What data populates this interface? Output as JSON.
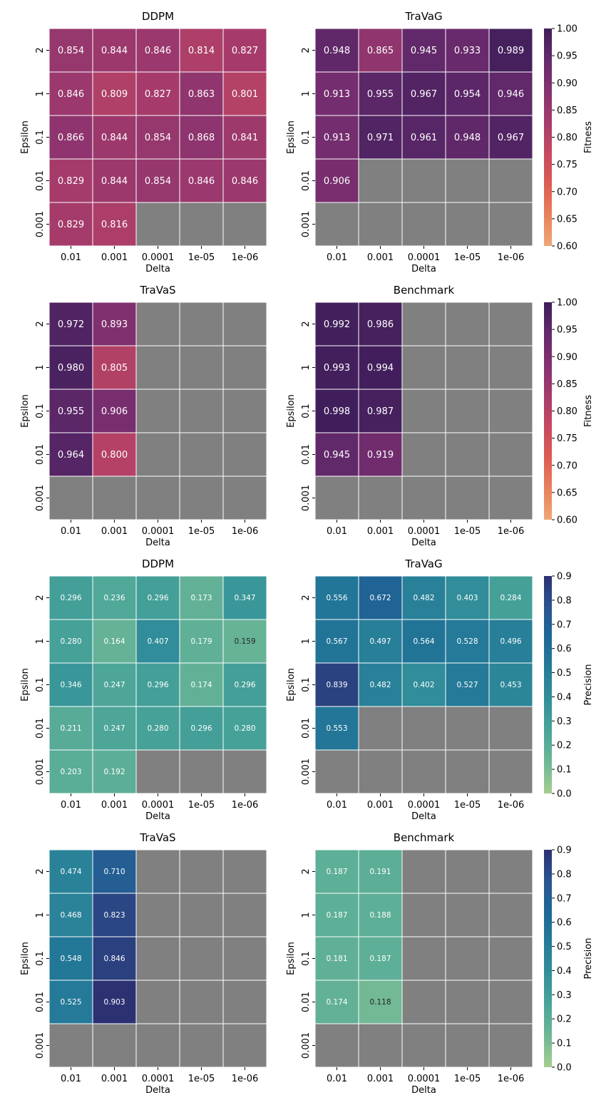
{
  "figure": {
    "colorbars": [
      {
        "label": "Fitness",
        "ticks": [
          "0.60",
          "0.65",
          "0.70",
          "0.75",
          "0.80",
          "0.85",
          "0.90",
          "0.95",
          "1.00"
        ],
        "range": [
          0.6,
          1.0
        ],
        "colormap": "flare"
      },
      {
        "label": "Fitness",
        "ticks": [
          "0.60",
          "0.65",
          "0.70",
          "0.75",
          "0.80",
          "0.85",
          "0.90",
          "0.95",
          "1.00"
        ],
        "range": [
          0.6,
          1.0
        ],
        "colormap": "flare"
      },
      {
        "label": "Precision",
        "ticks": [
          "0.0",
          "0.1",
          "0.2",
          "0.3",
          "0.4",
          "0.5",
          "0.6",
          "0.7",
          "0.8",
          "0.9"
        ],
        "range": [
          0.0,
          0.9
        ],
        "colormap": "crest"
      },
      {
        "label": "Precision",
        "ticks": [
          "0.0",
          "0.1",
          "0.2",
          "0.3",
          "0.4",
          "0.5",
          "0.6",
          "0.7",
          "0.8",
          "0.9"
        ],
        "range": [
          0.0,
          0.9
        ],
        "colormap": "crest"
      }
    ],
    "missing_color": "#808080"
  },
  "chart_data": [
    {
      "type": "heatmap",
      "title": "DDPM",
      "metric": "Fitness",
      "xlabel": "Delta",
      "ylabel": "Epsilon",
      "x_categories": [
        "0.01",
        "0.001",
        "0.0001",
        "1e-05",
        "1e-06"
      ],
      "y_categories": [
        "2",
        "1",
        "0.1",
        "0.01",
        "0.001"
      ],
      "values": [
        [
          0.854,
          0.844,
          0.846,
          0.814,
          0.827
        ],
        [
          0.846,
          0.809,
          0.827,
          0.863,
          0.801
        ],
        [
          0.866,
          0.844,
          0.854,
          0.868,
          0.841
        ],
        [
          0.829,
          0.844,
          0.854,
          0.846,
          0.846
        ],
        [
          0.829,
          0.816,
          null,
          null,
          null
        ]
      ]
    },
    {
      "type": "heatmap",
      "title": "TraVaG",
      "metric": "Fitness",
      "xlabel": "Delta",
      "ylabel": "Epsilon",
      "x_categories": [
        "0.01",
        "0.001",
        "0.0001",
        "1e-05",
        "1e-06"
      ],
      "y_categories": [
        "2",
        "1",
        "0.1",
        "0.01",
        "0.001"
      ],
      "values": [
        [
          0.948,
          0.865,
          0.945,
          0.933,
          0.989
        ],
        [
          0.913,
          0.955,
          0.967,
          0.954,
          0.946
        ],
        [
          0.913,
          0.971,
          0.961,
          0.948,
          0.967
        ],
        [
          0.906,
          null,
          null,
          null,
          null
        ],
        [
          null,
          null,
          null,
          null,
          null
        ]
      ]
    },
    {
      "type": "heatmap",
      "title": "TraVaS",
      "metric": "Fitness",
      "xlabel": "Delta",
      "ylabel": "Epsilon",
      "x_categories": [
        "0.01",
        "0.001",
        "0.0001",
        "1e-05",
        "1e-06"
      ],
      "y_categories": [
        "2",
        "1",
        "0.1",
        "0.01",
        "0.001"
      ],
      "values": [
        [
          0.972,
          0.893,
          null,
          null,
          null
        ],
        [
          0.98,
          0.805,
          null,
          null,
          null
        ],
        [
          0.955,
          0.906,
          null,
          null,
          null
        ],
        [
          0.964,
          0.8,
          null,
          null,
          null
        ],
        [
          null,
          null,
          null,
          null,
          null
        ]
      ]
    },
    {
      "type": "heatmap",
      "title": "Benchmark",
      "metric": "Fitness",
      "xlabel": "Delta",
      "ylabel": "Epsilon",
      "x_categories": [
        "0.01",
        "0.001",
        "0.0001",
        "1e-05",
        "1e-06"
      ],
      "y_categories": [
        "2",
        "1",
        "0.1",
        "0.01",
        "0.001"
      ],
      "values": [
        [
          0.992,
          0.986,
          null,
          null,
          null
        ],
        [
          0.993,
          0.994,
          null,
          null,
          null
        ],
        [
          0.998,
          0.987,
          null,
          null,
          null
        ],
        [
          0.945,
          0.919,
          null,
          null,
          null
        ],
        [
          null,
          null,
          null,
          null,
          null
        ]
      ]
    },
    {
      "type": "heatmap",
      "title": "DDPM",
      "metric": "Precision",
      "xlabel": "Delta",
      "ylabel": "Epsilon",
      "x_categories": [
        "0.01",
        "0.001",
        "0.0001",
        "1e-05",
        "1e-06"
      ],
      "y_categories": [
        "2",
        "1",
        "0.1",
        "0.01",
        "0.001"
      ],
      "values": [
        [
          0.296,
          0.236,
          0.296,
          0.173,
          0.347
        ],
        [
          0.28,
          0.164,
          0.407,
          0.179,
          0.159
        ],
        [
          0.346,
          0.247,
          0.296,
          0.174,
          0.296
        ],
        [
          0.211,
          0.247,
          0.28,
          0.296,
          0.28
        ],
        [
          0.203,
          0.192,
          null,
          null,
          null
        ]
      ]
    },
    {
      "type": "heatmap",
      "title": "TraVaG",
      "metric": "Precision",
      "xlabel": "Delta",
      "ylabel": "Epsilon",
      "x_categories": [
        "0.01",
        "0.001",
        "0.0001",
        "1e-05",
        "1e-06"
      ],
      "y_categories": [
        "2",
        "1",
        "0.1",
        "0.01",
        "0.001"
      ],
      "values": [
        [
          0.556,
          0.672,
          0.482,
          0.403,
          0.284
        ],
        [
          0.567,
          0.497,
          0.564,
          0.528,
          0.496
        ],
        [
          0.839,
          0.482,
          0.402,
          0.527,
          0.453
        ],
        [
          0.553,
          null,
          null,
          null,
          null
        ],
        [
          null,
          null,
          null,
          null,
          null
        ]
      ]
    },
    {
      "type": "heatmap",
      "title": "TraVaS",
      "metric": "Precision",
      "xlabel": "Delta",
      "ylabel": "Epsilon",
      "x_categories": [
        "0.01",
        "0.001",
        "0.0001",
        "1e-05",
        "1e-06"
      ],
      "y_categories": [
        "2",
        "1",
        "0.1",
        "0.01",
        "0.001"
      ],
      "values": [
        [
          0.474,
          0.71,
          null,
          null,
          null
        ],
        [
          0.468,
          0.823,
          null,
          null,
          null
        ],
        [
          0.548,
          0.846,
          null,
          null,
          null
        ],
        [
          0.525,
          0.903,
          null,
          null,
          null
        ],
        [
          null,
          null,
          null,
          null,
          null
        ]
      ]
    },
    {
      "type": "heatmap",
      "title": "Benchmark",
      "metric": "Precision",
      "xlabel": "Delta",
      "ylabel": "Epsilon",
      "x_categories": [
        "0.01",
        "0.001",
        "0.0001",
        "1e-05",
        "1e-06"
      ],
      "y_categories": [
        "2",
        "1",
        "0.1",
        "0.01",
        "0.001"
      ],
      "values": [
        [
          0.187,
          0.191,
          null,
          null,
          null
        ],
        [
          0.187,
          0.188,
          null,
          null,
          null
        ],
        [
          0.181,
          0.187,
          null,
          null,
          null
        ],
        [
          0.174,
          0.118,
          null,
          null,
          null
        ],
        [
          null,
          null,
          null,
          null,
          null
        ]
      ]
    }
  ]
}
